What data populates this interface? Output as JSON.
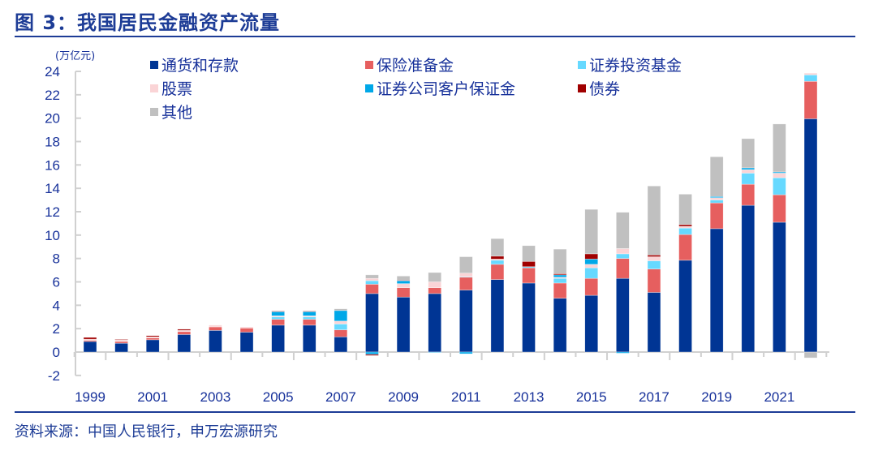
{
  "title": "图 3：我国居民金融资产流量",
  "source": "资料来源：中国人民银行，申万宏源研究",
  "chart_data": {
    "type": "bar",
    "stacked": true,
    "ylabel": "(万亿元)",
    "ylim": [
      -2,
      24
    ],
    "yticks": [
      24,
      22,
      20,
      18,
      16,
      14,
      12,
      10,
      8,
      6,
      4,
      2,
      0,
      -2
    ],
    "categories": [
      "1999",
      "2000",
      "2001",
      "2002",
      "2003",
      "2004",
      "2005",
      "2006",
      "2007",
      "2008",
      "2009",
      "2010",
      "2011",
      "2012",
      "2013",
      "2014",
      "2015",
      "2016",
      "2017",
      "2018",
      "2019",
      "2020",
      "2021",
      "2022"
    ],
    "xtick_labels": [
      "1999",
      "2001",
      "2003",
      "2005",
      "2007",
      "2009",
      "2011",
      "2013",
      "2015",
      "2017",
      "2019",
      "2021"
    ],
    "legend_position": "top",
    "grid": false,
    "series": [
      {
        "name": "通货和存款",
        "color": "#003594",
        "values": [
          0.9,
          0.75,
          1.05,
          1.5,
          1.85,
          1.7,
          2.3,
          2.3,
          1.3,
          5.0,
          4.7,
          5.0,
          5.3,
          6.2,
          5.9,
          4.6,
          4.85,
          6.3,
          5.1,
          7.85,
          10.55,
          12.55,
          11.1,
          19.95
        ]
      },
      {
        "name": "保险准备金",
        "color": "#e65f5f",
        "values": [
          0.1,
          0.15,
          0.15,
          0.25,
          0.3,
          0.35,
          0.5,
          0.5,
          0.6,
          0.8,
          0.8,
          0.5,
          1.1,
          1.3,
          1.3,
          1.3,
          1.45,
          1.7,
          2.0,
          2.2,
          2.2,
          1.8,
          2.35,
          3.2
        ]
      },
      {
        "name": "证券投资基金",
        "color": "#66d9ff",
        "values": [
          0,
          0,
          0,
          0,
          0,
          0,
          0.2,
          0.2,
          0.5,
          0.3,
          0,
          0,
          0.05,
          0.35,
          0.1,
          0.4,
          0.9,
          0.4,
          0.7,
          0.55,
          0.25,
          0.95,
          1.45,
          0.55
        ]
      },
      {
        "name": "股票",
        "color": "#fad4d6",
        "values": [
          0.1,
          0.15,
          0.1,
          0.1,
          0.15,
          0.1,
          0.1,
          0.1,
          0.25,
          0.2,
          0.35,
          0.5,
          0.3,
          0.1,
          0,
          0.1,
          0.3,
          0.45,
          0.35,
          0.15,
          0.2,
          0.3,
          0.4,
          0.15
        ]
      },
      {
        "name": "证券公司客户保证金",
        "color": "#00a8e8",
        "values": [
          0,
          0,
          0,
          0,
          0,
          0,
          0.35,
          0.35,
          0.9,
          -0.2,
          0.25,
          -0.05,
          -0.15,
          0,
          0,
          0.2,
          0.45,
          -0.1,
          0,
          0,
          0.1,
          0.15,
          0.1,
          0
        ]
      },
      {
        "name": "债券",
        "color": "#a00000",
        "values": [
          0.15,
          0.05,
          0.1,
          0.1,
          0,
          0,
          0.05,
          0.05,
          0,
          -0.1,
          0.05,
          0,
          0,
          0.25,
          0.45,
          0.1,
          0.45,
          0,
          0.15,
          0.15,
          0,
          0,
          0,
          0
        ]
      },
      {
        "name": "其他",
        "color": "#c0c0c0",
        "values": [
          0,
          0,
          0,
          0,
          0,
          0,
          0,
          0,
          0.15,
          0.3,
          0.35,
          0.8,
          1.4,
          1.5,
          1.35,
          2.1,
          3.8,
          3.1,
          5.9,
          2.6,
          3.4,
          2.5,
          4.1,
          -0.5
        ]
      }
    ]
  }
}
